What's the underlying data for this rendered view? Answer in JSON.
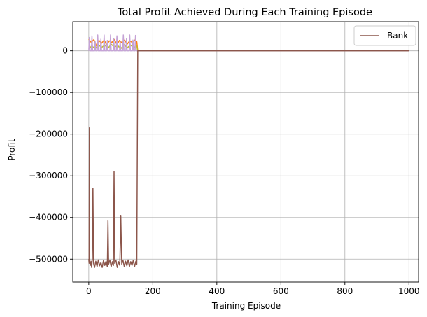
{
  "chart_data": {
    "type": "line",
    "title": "Total Profit Achieved During Each Training Episode",
    "xlabel": "Training Episode",
    "ylabel": "Profit",
    "xlim": [
      -50,
      1030
    ],
    "ylim": [
      -555000,
      70000
    ],
    "xticks": [
      0,
      200,
      400,
      600,
      800,
      1000
    ],
    "yticks": [
      0,
      -100000,
      -200000,
      -300000,
      -400000,
      -500000
    ],
    "xtick_labels": [
      "0",
      "200",
      "400",
      "600",
      "800",
      "1000"
    ],
    "ytick_labels": [
      "0",
      "−100000",
      "−200000",
      "−300000",
      "−400000",
      "−500000"
    ],
    "grid": true,
    "legend": {
      "placement": "top-right",
      "entries": [
        "Bank"
      ]
    },
    "series": [
      {
        "name": "Bank",
        "color": "#8c564b",
        "points": [
          [
            0,
            -500000
          ],
          [
            1,
            -510000
          ],
          [
            2,
            -185000
          ],
          [
            3,
            -505000
          ],
          [
            5,
            -515000
          ],
          [
            7,
            -505000
          ],
          [
            9,
            -520000
          ],
          [
            11,
            -500000
          ],
          [
            13,
            -330000
          ],
          [
            15,
            -510000
          ],
          [
            18,
            -520000
          ],
          [
            22,
            -505000
          ],
          [
            26,
            -518000
          ],
          [
            30,
            -502000
          ],
          [
            34,
            -516000
          ],
          [
            38,
            -508000
          ],
          [
            42,
            -520000
          ],
          [
            46,
            -503000
          ],
          [
            50,
            -515000
          ],
          [
            54,
            -505000
          ],
          [
            58,
            -518000
          ],
          [
            60,
            -408000
          ],
          [
            62,
            -512000
          ],
          [
            66,
            -503000
          ],
          [
            70,
            -518000
          ],
          [
            74,
            -506000
          ],
          [
            77,
            -515000
          ],
          [
            79,
            -290000
          ],
          [
            81,
            -510000
          ],
          [
            85,
            -503000
          ],
          [
            89,
            -520000
          ],
          [
            93,
            -506000
          ],
          [
            97,
            -515000
          ],
          [
            100,
            -395000
          ],
          [
            103,
            -512000
          ],
          [
            107,
            -503000
          ],
          [
            111,
            -518000
          ],
          [
            115,
            -505000
          ],
          [
            119,
            -516000
          ],
          [
            123,
            -502000
          ],
          [
            127,
            -518000
          ],
          [
            131,
            -506000
          ],
          [
            135,
            -515000
          ],
          [
            139,
            -503000
          ],
          [
            143,
            -518000
          ],
          [
            147,
            -505000
          ],
          [
            150,
            -512000
          ],
          [
            153,
            0
          ],
          [
            1000,
            0
          ]
        ]
      },
      {
        "color": "#ff7f0e",
        "points": [
          [
            0,
            28000
          ],
          [
            8,
            20000
          ],
          [
            16,
            27000
          ],
          [
            24,
            12000
          ],
          [
            32,
            25000
          ],
          [
            40,
            18000
          ],
          [
            48,
            26000
          ],
          [
            56,
            14000
          ],
          [
            64,
            24000
          ],
          [
            72,
            20000
          ],
          [
            80,
            27000
          ],
          [
            88,
            15000
          ],
          [
            96,
            25000
          ],
          [
            104,
            19000
          ],
          [
            112,
            26000
          ],
          [
            120,
            16000
          ],
          [
            128,
            24000
          ],
          [
            136,
            20000
          ],
          [
            144,
            26000
          ],
          [
            150,
            22000
          ],
          [
            153,
            0
          ],
          [
            1000,
            0
          ]
        ]
      },
      {
        "color": "#bcbd22",
        "points": [
          [
            0,
            5000
          ],
          [
            10,
            12000
          ],
          [
            20,
            4000
          ],
          [
            30,
            15000
          ],
          [
            40,
            8000
          ],
          [
            50,
            14000
          ],
          [
            60,
            6000
          ],
          [
            70,
            16000
          ],
          [
            80,
            9000
          ],
          [
            90,
            13000
          ],
          [
            100,
            5000
          ],
          [
            110,
            15000
          ],
          [
            120,
            7000
          ],
          [
            130,
            14000
          ],
          [
            140,
            8000
          ],
          [
            150,
            12000
          ],
          [
            153,
            0
          ],
          [
            1000,
            0
          ]
        ]
      },
      {
        "color": "#c5a3d6",
        "points": [
          [
            0,
            0
          ],
          [
            2,
            32000
          ],
          [
            4,
            0
          ],
          [
            8,
            0
          ],
          [
            10,
            36000
          ],
          [
            12,
            0
          ],
          [
            18,
            0
          ],
          [
            20,
            22000
          ],
          [
            22,
            0
          ],
          [
            26,
            0
          ],
          [
            28,
            38000
          ],
          [
            30,
            0
          ],
          [
            36,
            0
          ],
          [
            38,
            28000
          ],
          [
            40,
            0
          ],
          [
            46,
            0
          ],
          [
            48,
            38000
          ],
          [
            50,
            0
          ],
          [
            56,
            0
          ],
          [
            58,
            25000
          ],
          [
            60,
            0
          ],
          [
            66,
            0
          ],
          [
            68,
            38000
          ],
          [
            70,
            0
          ],
          [
            76,
            0
          ],
          [
            78,
            30000
          ],
          [
            80,
            0
          ],
          [
            86,
            0
          ],
          [
            88,
            36000
          ],
          [
            90,
            0
          ],
          [
            96,
            0
          ],
          [
            98,
            24000
          ],
          [
            100,
            0
          ],
          [
            106,
            0
          ],
          [
            108,
            38000
          ],
          [
            110,
            0
          ],
          [
            116,
            0
          ],
          [
            118,
            30000
          ],
          [
            120,
            0
          ],
          [
            126,
            0
          ],
          [
            128,
            38000
          ],
          [
            130,
            0
          ],
          [
            136,
            0
          ],
          [
            138,
            26000
          ],
          [
            140,
            0
          ],
          [
            144,
            0
          ],
          [
            146,
            37000
          ],
          [
            148,
            0
          ],
          [
            152,
            0
          ],
          [
            1000,
            0
          ]
        ]
      }
    ]
  }
}
